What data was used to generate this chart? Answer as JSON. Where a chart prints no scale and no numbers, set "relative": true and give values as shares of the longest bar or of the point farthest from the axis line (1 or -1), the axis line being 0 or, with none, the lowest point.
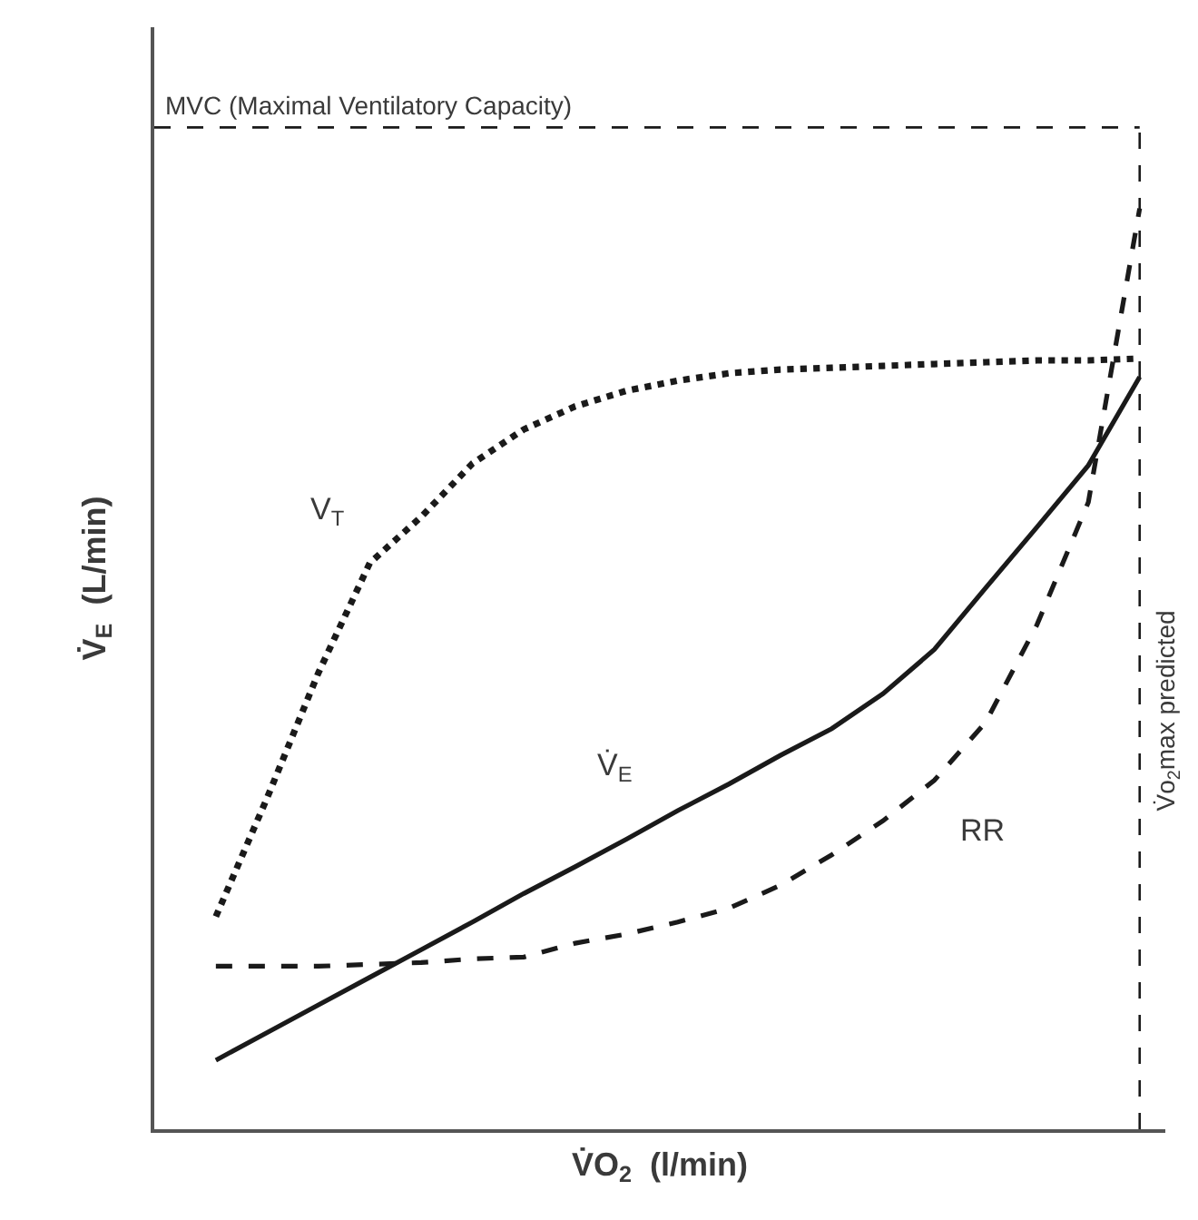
{
  "chart_data": {
    "type": "line",
    "relative": true,
    "xlabel": "V̇O$_{2}$  (l/min)",
    "ylabel": "V̇$_{E}$  (L/min)",
    "legend": false,
    "marker": "none",
    "annotations": [
      "V̇o$_{2}$max predicted"
    ],
    "categories": [
      null,
      null,
      null,
      null,
      null,
      null,
      null,
      null,
      null,
      null,
      null,
      null,
      null,
      null,
      null,
      null,
      null,
      null,
      null
    ],
    "series": [
      {
        "name": "V$_{T}$",
        "color": "#1a1a1a",
        "line_style": "dotted",
        "values": [
          0.231,
          0.36,
          0.496,
          0.615,
          0.665,
          0.723,
          0.76,
          0.785,
          0.802,
          0.813,
          0.821,
          0.825,
          0.827,
          0.829,
          0.831,
          0.833,
          0.835,
          0.835,
          0.837
        ]
      },
      {
        "name": "V̇$_{E}$",
        "color": "#1a1a1a",
        "line_style": "solid",
        "values": [
          0.075,
          0.105,
          0.135,
          0.165,
          0.195,
          0.225,
          0.256,
          0.285,
          0.315,
          0.346,
          0.375,
          0.406,
          0.435,
          0.473,
          0.521,
          0.588,
          0.654,
          0.721,
          0.817
        ]
      },
      {
        "name": "RR",
        "color": "#1a1a1a",
        "line_style": "dashed",
        "values": [
          0.177,
          0.177,
          0.177,
          0.179,
          0.181,
          0.185,
          0.187,
          0.202,
          0.212,
          0.225,
          0.24,
          0.265,
          0.298,
          0.335,
          0.379,
          0.442,
          0.548,
          0.681,
          1.0
        ]
      }
    ],
    "ref_lines": [
      {
        "axis": "y",
        "value": 1.088,
        "label": "MVC (Maximal Ventilatory Capacity)",
        "line_style": "dashed",
        "color": "#1a1a1a"
      }
    ]
  }
}
